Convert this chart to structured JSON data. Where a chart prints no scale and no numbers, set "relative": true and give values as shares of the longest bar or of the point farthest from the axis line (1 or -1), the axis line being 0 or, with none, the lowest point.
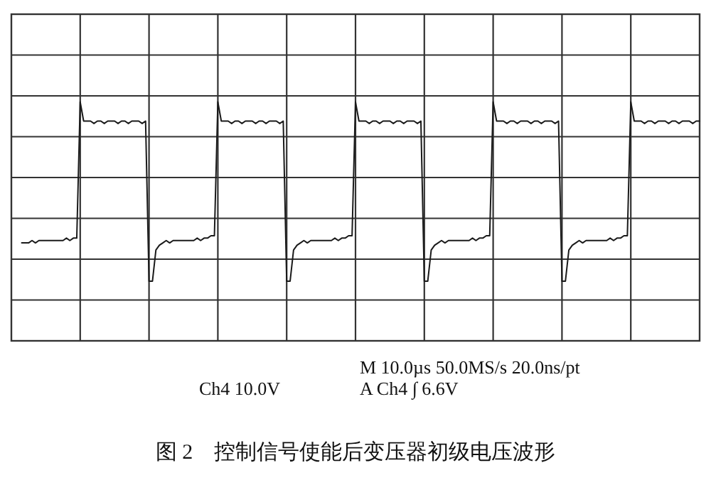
{
  "chart_data": {
    "type": "line",
    "relative": true,
    "grid": true,
    "title": "图 2　控制信号使能后变压器初级电压波形",
    "annotations": [
      "M 10.0µs 50.0MS/s 20.0ns/pt",
      "Ch4 10.0V",
      "A Ch4 ∫ 6.6V"
    ],
    "categories": [
      null,
      null,
      null,
      null,
      null,
      null,
      null,
      null,
      null,
      null,
      null,
      null,
      null,
      null,
      null,
      null,
      null,
      null,
      null,
      null,
      null,
      null,
      null,
      null,
      null,
      null,
      null,
      null,
      null,
      null,
      null,
      null,
      null,
      null,
      null,
      null,
      null,
      null,
      null,
      null,
      null,
      null,
      null,
      null,
      null,
      null,
      null,
      null,
      null,
      null,
      null,
      null,
      null,
      null,
      null,
      null,
      null,
      null,
      null,
      null,
      null,
      null,
      null,
      null,
      null,
      null,
      null,
      null,
      null,
      null,
      null,
      null,
      null,
      null,
      null,
      null,
      null,
      null,
      null,
      null,
      null,
      null,
      null,
      null,
      null,
      null,
      null,
      null,
      null,
      null,
      null,
      null,
      null,
      null,
      null,
      null,
      null,
      null,
      null,
      null,
      null,
      null,
      null,
      null,
      null,
      null,
      null,
      null,
      null,
      null,
      null,
      null,
      null,
      null,
      null,
      null,
      null,
      null,
      null,
      null,
      null,
      null,
      null,
      null,
      null,
      null,
      null,
      null,
      null,
      null,
      null,
      null,
      null,
      null,
      null,
      null,
      null,
      null,
      null,
      null,
      null,
      null,
      null,
      null,
      null,
      null,
      null,
      null,
      null,
      null,
      null,
      null,
      null,
      null,
      null,
      null,
      null,
      null,
      null,
      null,
      null,
      null,
      null,
      null,
      null,
      null,
      null,
      null,
      null,
      null,
      null,
      null,
      null,
      null,
      null,
      null,
      null,
      null,
      null,
      null,
      null,
      null,
      null,
      null,
      null,
      null,
      null,
      null,
      null,
      null,
      null,
      null,
      null,
      null,
      null,
      null,
      null,
      null,
      null,
      null,
      null
    ],
    "series": [
      {
        "color": "#1a1a1a",
        "values": [
          null,
          null,
          null,
          0.41,
          0.41,
          0.41,
          0.42,
          0.41,
          0.42,
          0.42,
          0.42,
          0.42,
          0.42,
          0.42,
          0.42,
          0.42,
          0.43,
          0.42,
          0.43,
          0.43,
          1,
          0.92,
          0.92,
          0.92,
          0.91,
          0.92,
          0.92,
          0.91,
          0.92,
          0.92,
          0.92,
          0.91,
          0.92,
          0.92,
          0.91,
          0.92,
          0.92,
          0.92,
          0.91,
          0.92,
          0.25,
          0.25,
          0.38,
          0.4,
          0.41,
          0.42,
          0.41,
          0.42,
          0.42,
          0.42,
          0.42,
          0.42,
          0.42,
          0.42,
          0.43,
          0.42,
          0.43,
          0.43,
          0.44,
          0.44,
          1,
          0.92,
          0.92,
          0.92,
          0.91,
          0.92,
          0.92,
          0.91,
          0.92,
          0.92,
          0.92,
          0.91,
          0.92,
          0.92,
          0.91,
          0.92,
          0.92,
          0.92,
          0.91,
          0.92,
          0.25,
          0.25,
          0.38,
          0.4,
          0.41,
          0.42,
          0.41,
          0.42,
          0.42,
          0.42,
          0.42,
          0.42,
          0.42,
          0.42,
          0.43,
          0.42,
          0.43,
          0.43,
          0.44,
          0.44,
          1,
          0.92,
          0.92,
          0.92,
          0.91,
          0.92,
          0.92,
          0.91,
          0.92,
          0.92,
          0.92,
          0.91,
          0.92,
          0.92,
          0.91,
          0.92,
          0.92,
          0.92,
          0.91,
          0.92,
          0.25,
          0.25,
          0.38,
          0.4,
          0.41,
          0.42,
          0.41,
          0.42,
          0.42,
          0.42,
          0.42,
          0.42,
          0.42,
          0.42,
          0.43,
          0.42,
          0.43,
          0.43,
          0.44,
          0.44,
          1,
          0.92,
          0.92,
          0.92,
          0.91,
          0.92,
          0.92,
          0.91,
          0.92,
          0.92,
          0.92,
          0.91,
          0.92,
          0.92,
          0.91,
          0.92,
          0.92,
          0.92,
          0.91,
          0.92,
          0.25,
          0.25,
          0.38,
          0.4,
          0.41,
          0.42,
          0.41,
          0.42,
          0.42,
          0.42,
          0.42,
          0.42,
          0.42,
          0.42,
          0.43,
          0.42,
          0.43,
          0.43,
          0.44,
          0.44,
          1,
          0.92,
          0.92,
          0.92,
          0.91,
          0.92,
          0.92,
          0.91,
          0.92,
          0.92,
          0.92,
          0.91,
          0.92,
          0.92,
          0.91,
          0.92,
          0.92,
          0.92,
          0.91,
          0.92,
          0.92
        ]
      }
    ]
  }
}
